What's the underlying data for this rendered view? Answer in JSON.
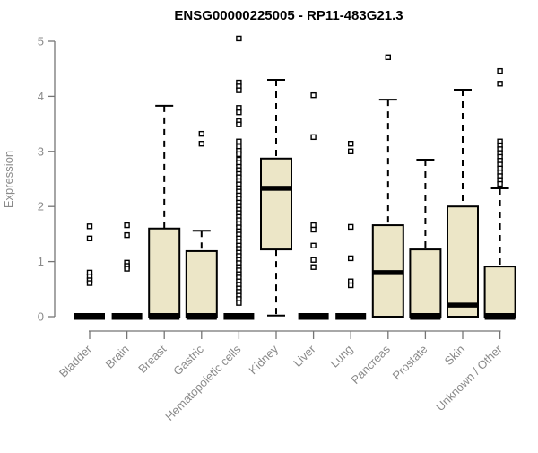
{
  "figure": {
    "background": "#ffffff"
  },
  "chart_data": {
    "type": "boxplot",
    "title": "ENSG00000225005 - RP11-483G21.3",
    "ylabel": "Expression",
    "xlabel": "",
    "ylim": [
      0,
      5
    ],
    "yticks": [
      0,
      1,
      2,
      3,
      4,
      5
    ],
    "grid": "off",
    "legend": "none",
    "categories": [
      "Bladder",
      "Brain",
      "Breast",
      "Gastric",
      "Hematopoietic cells",
      "Kidney",
      "Liver",
      "Lung",
      "Pancreas",
      "Prostate",
      "Skin",
      "Unknown / Other"
    ],
    "series": [
      {
        "category": "Bladder",
        "low": 0,
        "q1": 0,
        "median": 0,
        "q3": 0,
        "high": 0,
        "outliers": [
          1.64,
          1.42,
          0.8,
          0.73,
          0.66,
          0.61
        ]
      },
      {
        "category": "Brain",
        "low": 0,
        "q1": 0,
        "median": 0,
        "q3": 0,
        "high": 0,
        "outliers": [
          1.66,
          1.48,
          0.98,
          0.92,
          0.87
        ]
      },
      {
        "category": "Breast",
        "low": 0,
        "q1": 0,
        "median": 0,
        "q3": 1.6,
        "high": 3.83,
        "outliers": []
      },
      {
        "category": "Gastric",
        "low": 0,
        "q1": 0,
        "median": 0,
        "q3": 1.19,
        "high": 1.56,
        "outliers": [
          3.32,
          3.14
        ]
      },
      {
        "category": "Hematopoietic cells",
        "low": 0,
        "q1": 0,
        "median": 0,
        "q3": 0,
        "high": 0,
        "outliers": [
          5.05,
          4.25,
          4.18,
          4.11,
          3.79,
          3.71,
          3.55,
          3.49,
          3.18,
          3.09,
          3.01,
          2.95,
          2.85,
          2.79,
          2.72,
          2.66,
          2.59,
          2.53,
          2.46,
          2.4,
          2.33,
          2.27,
          2.2,
          2.14,
          2.07,
          2.01,
          1.94,
          1.88,
          1.81,
          1.75,
          1.68,
          1.62,
          1.55,
          1.49,
          1.42,
          1.36,
          1.29,
          1.23,
          1.16,
          1.1,
          1.03,
          0.97,
          0.9,
          0.84,
          0.77,
          0.71,
          0.64,
          0.58,
          0.51,
          0.45,
          0.38,
          0.32,
          0.25
        ]
      },
      {
        "category": "Kidney",
        "low": 0.02,
        "q1": 1.22,
        "median": 2.33,
        "q3": 2.87,
        "high": 4.3,
        "outliers": []
      },
      {
        "category": "Liver",
        "low": 0,
        "q1": 0,
        "median": 0,
        "q3": 0,
        "high": 0,
        "outliers": [
          4.02,
          3.26,
          1.66,
          1.58,
          1.29,
          1.03,
          0.9
        ]
      },
      {
        "category": "Lung",
        "low": 0,
        "q1": 0,
        "median": 0,
        "q3": 0,
        "high": 0,
        "outliers": [
          3.14,
          3.0,
          1.63,
          1.06,
          0.64,
          0.57
        ]
      },
      {
        "category": "Pancreas",
        "low": 0,
        "q1": 0,
        "median": 0.8,
        "q3": 1.66,
        "high": 3.94,
        "outliers": [
          4.71
        ]
      },
      {
        "category": "Prostate",
        "low": 0,
        "q1": 0,
        "median": 0,
        "q3": 1.22,
        "high": 2.85,
        "outliers": []
      },
      {
        "category": "Skin",
        "low": 0,
        "q1": 0,
        "median": 0.21,
        "q3": 2.0,
        "high": 4.12,
        "outliers": []
      },
      {
        "category": "Unknown / Other",
        "low": 0,
        "q1": 0,
        "median": 0,
        "q3": 0.91,
        "high": 2.33,
        "outliers": [
          4.46,
          4.23,
          3.18,
          3.11,
          3.04,
          2.97,
          2.9,
          2.83,
          2.76,
          2.69,
          2.62,
          2.55,
          2.48,
          2.41
        ]
      }
    ],
    "colors": {
      "box_fill": "#ece6c7",
      "box_border": "#000000",
      "median": "#000000",
      "whisker": "#000000",
      "outlier_border": "#000000",
      "outlier_fill": "#ffffff",
      "axis_text": "#8a8a8a",
      "axis_line": "#757575",
      "title_text": "#000000",
      "background": "#ffffff"
    }
  }
}
